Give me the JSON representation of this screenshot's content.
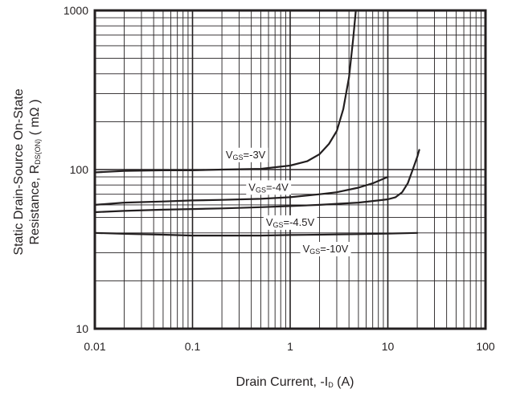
{
  "chart_data": {
    "type": "line",
    "title": "",
    "xlabel": "Drain Current, -I",
    "xlabel_sub": "D",
    "xlabel_unit": " (A)",
    "ylabel_line1": "Static Drain-Source On-State",
    "ylabel_line2_prefix": "Resistance, R",
    "ylabel_line2_sub": "DS(ON)",
    "ylabel_line2_unit": " ( mΩ )",
    "xscale": "log",
    "yscale": "log",
    "xlim": [
      0.01,
      100
    ],
    "ylim": [
      10,
      1000
    ],
    "x_ticks": [
      "0.01",
      "0.1",
      "1",
      "10",
      "100"
    ],
    "y_ticks": [
      "10",
      "100",
      "1000"
    ],
    "grid": true,
    "line_color": "#231f20",
    "series": [
      {
        "label_prefix": "V",
        "label_sub": "GS",
        "label_value": "=-3V",
        "label_at": [
          0.35,
          125
        ],
        "points": [
          [
            0.01,
            96
          ],
          [
            0.02,
            98
          ],
          [
            0.05,
            99
          ],
          [
            0.1,
            99
          ],
          [
            0.2,
            100
          ],
          [
            0.5,
            101
          ],
          [
            1,
            106
          ],
          [
            1.5,
            113
          ],
          [
            2,
            125
          ],
          [
            2.5,
            145
          ],
          [
            3,
            175
          ],
          [
            3.5,
            240
          ],
          [
            4,
            380
          ],
          [
            4.4,
            650
          ],
          [
            4.7,
            1000
          ]
        ]
      },
      {
        "label_prefix": "V",
        "label_sub": "GS",
        "label_value": "=-4V",
        "label_at": [
          0.6,
          78
        ],
        "points": [
          [
            0.01,
            60
          ],
          [
            0.02,
            62
          ],
          [
            0.05,
            63
          ],
          [
            0.1,
            64
          ],
          [
            0.2,
            64.5
          ],
          [
            0.5,
            65.5
          ],
          [
            1,
            67
          ],
          [
            2,
            70
          ],
          [
            3,
            72
          ],
          [
            5,
            77
          ],
          [
            7,
            82
          ],
          [
            10,
            90
          ]
        ]
      },
      {
        "label_prefix": "V",
        "label_sub": "GS",
        "label_value": "=-4.5V",
        "label_at": [
          1.0,
          47
        ],
        "points": [
          [
            0.01,
            54
          ],
          [
            0.02,
            55
          ],
          [
            0.05,
            56
          ],
          [
            0.1,
            56.5
          ],
          [
            0.2,
            57
          ],
          [
            0.5,
            58
          ],
          [
            1,
            59
          ],
          [
            2,
            60
          ],
          [
            5,
            62
          ],
          [
            8,
            64
          ],
          [
            10,
            65
          ],
          [
            12,
            67
          ],
          [
            14,
            72
          ],
          [
            16,
            82
          ],
          [
            18,
            100
          ],
          [
            20,
            120
          ],
          [
            21,
            133
          ]
        ]
      },
      {
        "label_prefix": "V",
        "label_sub": "GS",
        "label_value": "=-10V",
        "label_at": [
          2.3,
          32
        ],
        "points": [
          [
            0.01,
            40
          ],
          [
            0.02,
            39.5
          ],
          [
            0.05,
            39
          ],
          [
            0.1,
            38.5
          ],
          [
            0.2,
            38.5
          ],
          [
            0.5,
            38.5
          ],
          [
            1,
            38.8
          ],
          [
            2,
            39
          ],
          [
            5,
            39.3
          ],
          [
            10,
            39.6
          ],
          [
            20,
            40
          ]
        ]
      }
    ]
  }
}
